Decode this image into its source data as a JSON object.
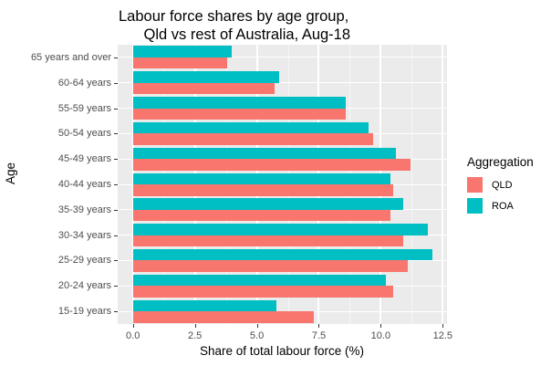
{
  "chart_data": {
    "type": "bar",
    "orientation": "horizontal",
    "title": "Labour force shares by age group,\n      Qld vs rest of Australia, Aug-18",
    "xlabel": "Share of total labour force (%)",
    "ylabel": "Age",
    "xlim": [
      0,
      12.5
    ],
    "xticks": [
      "0.0",
      "2.5",
      "5.0",
      "7.5",
      "10.0",
      "12.5"
    ],
    "categories": [
      "15-19 years",
      "20-24 years",
      "25-29 years",
      "30-34 years",
      "35-39 years",
      "40-44 years",
      "45-49 years",
      "50-54 years",
      "55-59 years",
      "60-64 years",
      "65 years and over"
    ],
    "series": [
      {
        "name": "QLD",
        "color": "#f8766d",
        "values": [
          7.3,
          10.5,
          11.1,
          10.9,
          10.4,
          10.5,
          11.2,
          9.7,
          8.6,
          5.7,
          3.8
        ]
      },
      {
        "name": "ROA",
        "color": "#00bfc4",
        "values": [
          5.8,
          10.2,
          12.1,
          11.9,
          10.9,
          10.4,
          10.6,
          9.5,
          8.6,
          5.9,
          4.0
        ]
      }
    ],
    "legend": {
      "title": "Aggregation",
      "position": "right"
    },
    "grid": true
  }
}
